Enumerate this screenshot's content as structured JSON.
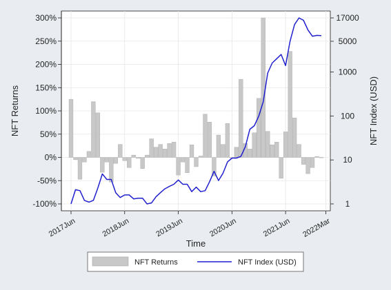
{
  "chart_data": {
    "type": "bar+line",
    "xlabel": "Time",
    "ylabel_left": "NFT Returns",
    "ylabel_right": "NFT Index (USD)",
    "x_ticks": [
      "2017Jun",
      "2018Jun",
      "2019Jun",
      "2020Jun",
      "2021Jun",
      "2022Mar"
    ],
    "x_tick_month_index": [
      0,
      12,
      24,
      36,
      48,
      57
    ],
    "left_axis": {
      "ticks": [
        300,
        250,
        200,
        150,
        100,
        50,
        0,
        -50,
        -100
      ],
      "tick_labels": [
        "300%",
        "250%",
        "200%",
        "150%",
        "100%",
        "50%",
        "0%",
        "-50%",
        "-100%"
      ],
      "ylim": [
        -100,
        300
      ]
    },
    "right_axis": {
      "scale": "log",
      "ticks": [
        17000,
        5000,
        1000,
        100,
        10,
        1
      ],
      "tick_labels": [
        "17000",
        "5000",
        "1000",
        "100",
        "10",
        "1"
      ],
      "ylim": [
        1,
        17000
      ]
    },
    "grid": true,
    "legend": {
      "position": "bottom",
      "entries": [
        "NFT Returns",
        "NFT Index (USD)"
      ]
    },
    "colors": {
      "bars": "#c8c8c8",
      "bar_outline": "#a8a8a8",
      "line": "#1f1fd0",
      "grid": "#e6e6e6",
      "plot_bg": "#ffffff",
      "frame_bg": "#e9edf1"
    },
    "series": [
      {
        "name": "NFT Returns",
        "kind": "bar",
        "axis": "left",
        "values": [
          125,
          -5,
          -47,
          -10,
          13,
          120,
          96,
          -32,
          -10,
          -53,
          -13,
          28,
          -7,
          -22,
          5,
          -2,
          -24,
          5,
          40,
          22,
          28,
          18,
          30,
          33,
          -38,
          -10,
          -33,
          27,
          -20,
          3,
          93,
          76,
          -40,
          48,
          28,
          73,
          0,
          22,
          168,
          30,
          18,
          53,
          127,
          300,
          56,
          27,
          33,
          -45,
          55,
          228,
          85,
          28,
          -15,
          -35,
          -22,
          2,
          0
        ]
      },
      {
        "name": "NFT Index (USD)",
        "kind": "line",
        "axis": "right",
        "values": [
          1,
          2.1,
          2.0,
          1.2,
          1.1,
          1.2,
          2.3,
          4.8,
          3.6,
          3.6,
          1.8,
          1.4,
          1.6,
          1.6,
          1.3,
          1.35,
          1.35,
          1.0,
          1.05,
          1.45,
          1.8,
          2.2,
          2.5,
          2.8,
          3.5,
          2.8,
          2.8,
          1.9,
          2.4,
          1.9,
          2.0,
          3.2,
          5.5,
          3.4,
          5.0,
          9.0,
          11,
          11,
          12,
          20,
          50,
          60,
          100,
          210,
          950,
          1600,
          2000,
          2500,
          1400,
          5000,
          12000,
          17000,
          15000,
          9000,
          6500,
          6800,
          6700
        ]
      }
    ]
  }
}
